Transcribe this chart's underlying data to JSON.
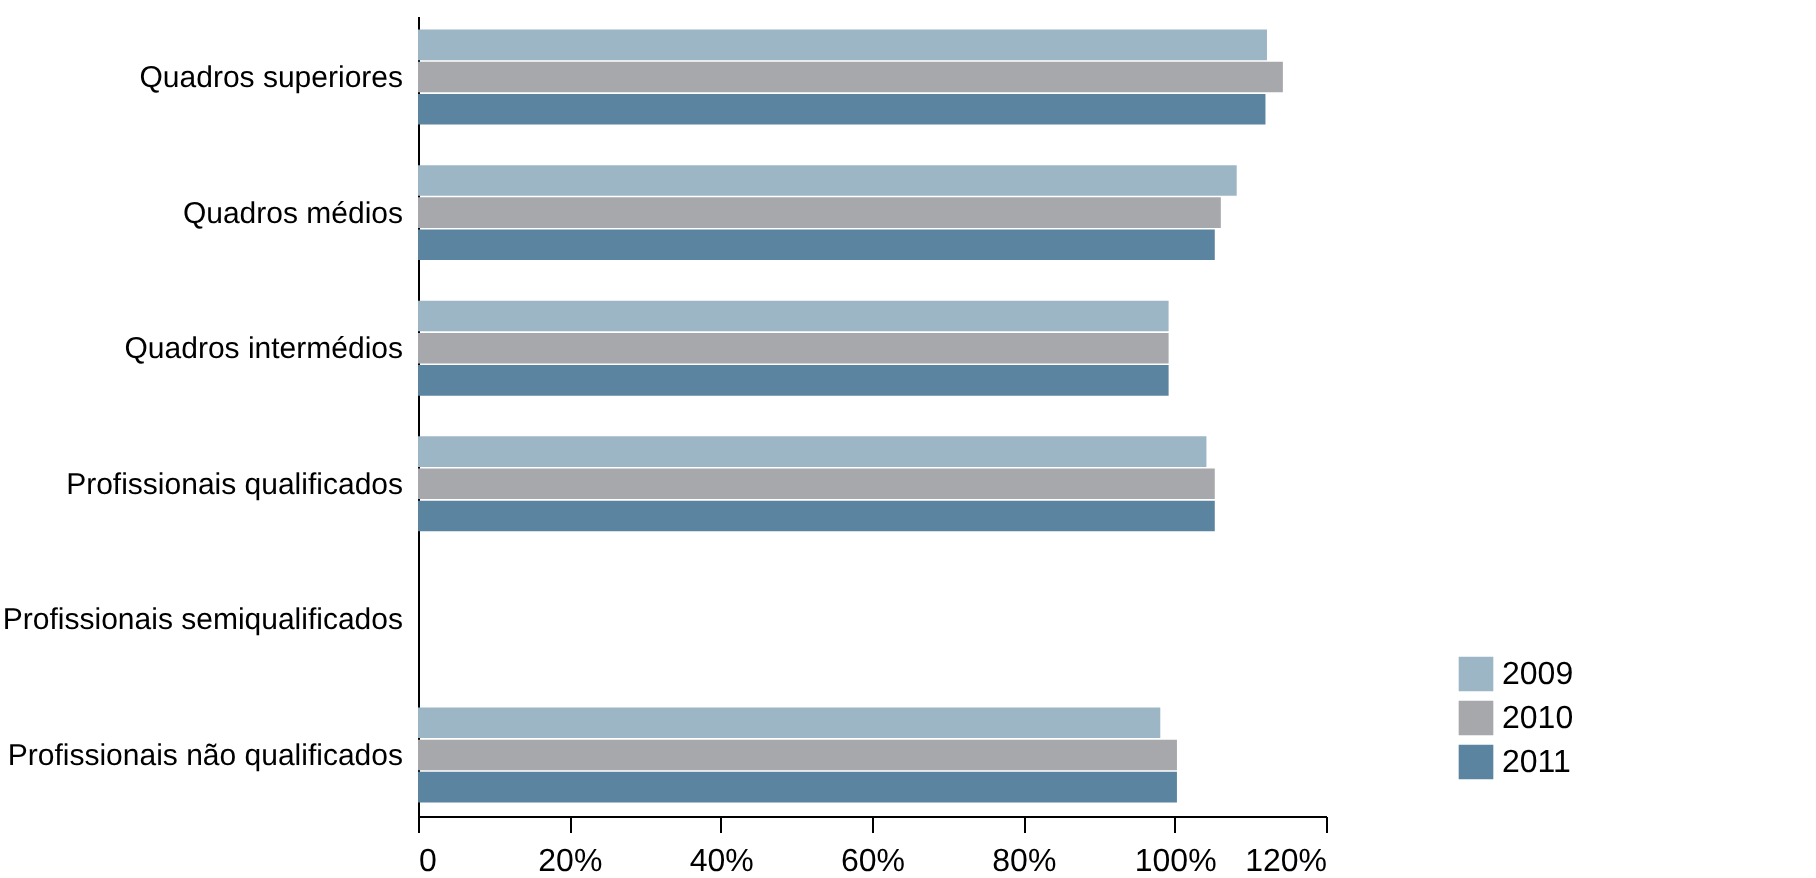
{
  "chart_data": {
    "type": "bar",
    "orientation": "horizontal",
    "categories": [
      "Quadros superiores",
      "Quadros médios",
      "Quadros intermédios",
      "Profissionais qualificados",
      "Profissionais semiqualificados",
      "Profissionais não qualificados"
    ],
    "series": [
      {
        "name": "2009",
        "color": "#9db6c6",
        "values": [
          112.2,
          108.2,
          99.2,
          104.2,
          null,
          98.1
        ]
      },
      {
        "name": "2010",
        "color": "#a7a8ab",
        "values": [
          114.3,
          106.1,
          99.2,
          105.3,
          null,
          100.3
        ]
      },
      {
        "name": "2011",
        "color": "#5b84a0",
        "values": [
          112.0,
          105.3,
          99.2,
          105.3,
          null,
          100.3
        ]
      }
    ],
    "xlim": [
      0,
      120
    ],
    "xticks": [
      {
        "value": 0,
        "label": "0"
      },
      {
        "value": 20,
        "label": "20%"
      },
      {
        "value": 40,
        "label": "40%"
      },
      {
        "value": 60,
        "label": "60%"
      },
      {
        "value": 80,
        "label": "80%"
      },
      {
        "value": 100,
        "label": "100%"
      },
      {
        "value": 120,
        "label": "120%"
      }
    ],
    "grid": false,
    "legend": "bottom right"
  }
}
